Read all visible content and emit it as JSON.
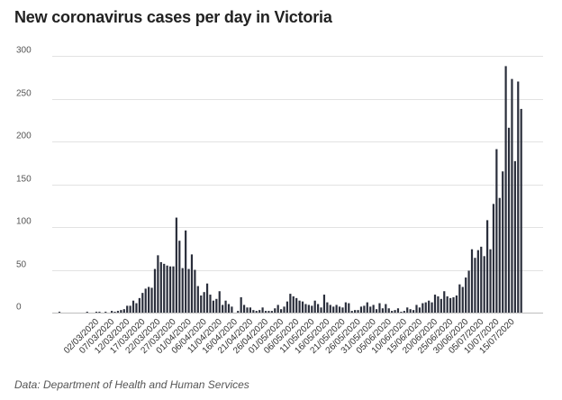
{
  "chart_data": {
    "type": "bar",
    "title": "New coronavirus cases per day in Victoria",
    "source": "Data: Department of Health and Human Services",
    "xlabel": "",
    "ylabel": "",
    "ylim": [
      0,
      300
    ],
    "yticks": [
      0,
      50,
      100,
      150,
      200,
      250,
      300
    ],
    "grid": true,
    "bar_color": "#2a2e3b",
    "x_start": "20/02/2020",
    "x_end": "17/07/2020",
    "xtick_labels": [
      "02/03/2020",
      "07/03/2020",
      "12/03/2020",
      "17/03/2020",
      "22/03/2020",
      "27/03/2020",
      "01/04/2020",
      "06/04/2020",
      "11/04/2020",
      "16/04/2020",
      "21/04/2020",
      "26/04/2020",
      "01/05/2020",
      "06/05/2020",
      "11/05/2020",
      "16/05/2020",
      "21/05/2020",
      "26/05/2020",
      "31/05/2020",
      "05/06/2020",
      "10/06/2020",
      "15/06/2020",
      "20/06/2020",
      "25/06/2020",
      "30/06/2020",
      "05/07/2020",
      "10/07/2020",
      "15/07/2020"
    ],
    "values": [
      1,
      0,
      0,
      0,
      0,
      0,
      0,
      0,
      0,
      1,
      0,
      0,
      1,
      1,
      0,
      1,
      0,
      2,
      1,
      2,
      3,
      4,
      8,
      8,
      14,
      11,
      17,
      23,
      28,
      30,
      29,
      51,
      67,
      59,
      57,
      55,
      54,
      54,
      111,
      84,
      52,
      96,
      51,
      68,
      50,
      31,
      20,
      24,
      34,
      21,
      14,
      16,
      25,
      9,
      14,
      10,
      7,
      0,
      2,
      18,
      9,
      6,
      6,
      3,
      2,
      3,
      6,
      2,
      2,
      2,
      5,
      9,
      4,
      7,
      13,
      22,
      19,
      17,
      14,
      13,
      10,
      9,
      8,
      14,
      10,
      6,
      21,
      12,
      9,
      7,
      9,
      7,
      6,
      12,
      11,
      2,
      3,
      3,
      7,
      8,
      12,
      7,
      9,
      4,
      11,
      5,
      10,
      5,
      2,
      3,
      5,
      1,
      2,
      6,
      4,
      3,
      9,
      6,
      11,
      12,
      14,
      12,
      21,
      19,
      16,
      25,
      19,
      17,
      18,
      20,
      33,
      30,
      41,
      49,
      74,
      64,
      73,
      77,
      66,
      108,
      74,
      127,
      191,
      134,
      165,
      288,
      216,
      273,
      177,
      270,
      238
    ]
  }
}
